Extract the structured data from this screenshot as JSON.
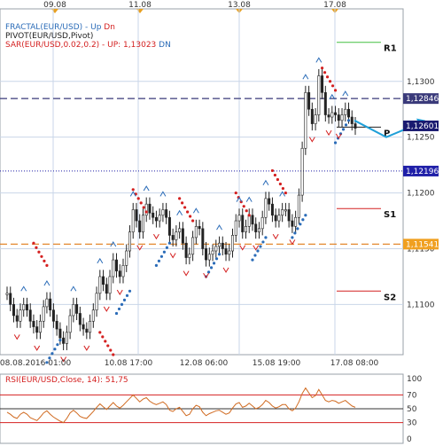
{
  "chart_data": {
    "type": "candlestick",
    "main": {
      "top_dates": [
        "09.08",
        "11.08",
        "13.08",
        "17.08"
      ],
      "bottom_dates": [
        "08.08.2016 01:00",
        "10.08 17:00",
        "12.08 06:00",
        "15.08 19:00",
        "17.08 08:00"
      ],
      "y_ticks": [
        1.11,
        1.115,
        1.12,
        1.125,
        1.13
      ],
      "y_tick_labels": [
        "1,1100",
        "1,1150",
        "1,1200",
        "1,1250",
        "1,1300"
      ],
      "ylim": [
        1.1055,
        1.1365
      ],
      "indicators": [
        {
          "name": "FRACTAL(EUR/USD)",
          "parts": [
            {
              "text": "FRACTAL(EUR/USD)  -  ",
              "color": "#2b6cb8"
            },
            {
              "text": "Up  ",
              "color": "#2b6cb8"
            },
            {
              "text": "Dn",
              "color": "#d42020"
            }
          ]
        },
        {
          "name": "PIVOT(EUR/USD,Pivot)",
          "parts": [
            {
              "text": "PIVOT(EUR/USD,Pivot)",
              "color": "#222222"
            }
          ]
        },
        {
          "name": "SAR(EUR/USD,0.02,0.2)",
          "parts": [
            {
              "text": "SAR(EUR/USD,0.02,0.2)  -  UP: 1,13023  ",
              "color": "#d42020"
            },
            {
              "text": "DN",
              "color": "#2b6cb8"
            }
          ]
        }
      ],
      "levels": [
        {
          "label": "1,12846",
          "value": 1.12846,
          "style": "dashed",
          "color": "#3a3a7a",
          "bg": "#3a3a7a",
          "fg": "#ffffff"
        },
        {
          "label": "1,12601",
          "value": 1.12601,
          "style": "tag",
          "color": "#1a1a70",
          "bg": "#1a1a70",
          "fg": "#ffffff"
        },
        {
          "label": "1,12196",
          "value": 1.12196,
          "style": "dotted",
          "color": "#1f1fa8",
          "bg": "#1f1fa8",
          "fg": "#ffffff"
        },
        {
          "label": "1,11541",
          "value": 1.11541,
          "style": "dashed",
          "color": "#e07b18",
          "bg": "#f0a020",
          "fg": "#ffffff"
        }
      ],
      "pivots": [
        {
          "label": "R1",
          "value": 1.1335,
          "color": "#44c040"
        },
        {
          "label": "P",
          "value": 1.1259,
          "color": "#222222"
        },
        {
          "label": "S1",
          "value": 1.1186,
          "color": "#d42020"
        },
        {
          "label": "S2",
          "value": 1.1112,
          "color": "#d42020"
        }
      ],
      "closes": [
        1.111,
        1.11,
        1.109,
        1.1085,
        1.1095,
        1.11,
        1.1095,
        1.1085,
        1.108,
        1.1075,
        1.1085,
        1.1098,
        1.1105,
        1.1095,
        1.1085,
        1.1078,
        1.107,
        1.1065,
        1.1075,
        1.109,
        1.11,
        1.1092,
        1.1082,
        1.1078,
        1.1075,
        1.1085,
        1.1095,
        1.111,
        1.1125,
        1.1118,
        1.111,
        1.1125,
        1.114,
        1.113,
        1.1125,
        1.1135,
        1.1148,
        1.1165,
        1.1185,
        1.1175,
        1.1165,
        1.118,
        1.119,
        1.1182,
        1.1178,
        1.1175,
        1.118,
        1.1185,
        1.1178,
        1.1162,
        1.1158,
        1.1165,
        1.1168,
        1.1155,
        1.1142,
        1.1145,
        1.116,
        1.117,
        1.1168,
        1.115,
        1.114,
        1.1145,
        1.1148,
        1.1152,
        1.1155,
        1.115,
        1.1145,
        1.1148,
        1.1162,
        1.1175,
        1.118,
        1.1165,
        1.117,
        1.118,
        1.1172,
        1.1165,
        1.1168,
        1.1178,
        1.1195,
        1.119,
        1.118,
        1.1175,
        1.118,
        1.1185,
        1.1185,
        1.1175,
        1.117,
        1.1178,
        1.1198,
        1.124,
        1.129,
        1.1275,
        1.1262,
        1.127,
        1.1305,
        1.129,
        1.127,
        1.1268,
        1.1272,
        1.127,
        1.1265,
        1.127,
        1.1275,
        1.1268,
        1.1262,
        1.1258
      ],
      "sar_up": [
        [
          8,
          1.1155
        ],
        [
          28,
          1.1075
        ],
        [
          38,
          1.1203
        ],
        [
          52,
          1.1195
        ],
        [
          69,
          1.12
        ],
        [
          80,
          1.122
        ],
        [
          95,
          1.1312
        ]
      ],
      "sar_down": [
        [
          12,
          1.1048
        ],
        [
          33,
          1.1092
        ],
        [
          45,
          1.1135
        ],
        [
          60,
          1.1125
        ],
        [
          74,
          1.114
        ],
        [
          86,
          1.116
        ],
        [
          99,
          1.1245
        ]
      ],
      "forecast": [
        [
          100,
          1.1265
        ],
        [
          103,
          1.125
        ],
        [
          106,
          1.1262
        ]
      ]
    },
    "rsi": {
      "label": "RSI(EUR/USD,Close, 14): 51,75",
      "levels": [
        100,
        70,
        50,
        30,
        0
      ],
      "level_labels": [
        "100",
        "70",
        "50",
        "30",
        "0"
      ],
      "values": [
        45,
        42,
        38,
        36,
        42,
        45,
        42,
        37,
        35,
        33,
        38,
        44,
        47,
        42,
        38,
        35,
        32,
        30,
        36,
        44,
        48,
        44,
        39,
        37,
        36,
        41,
        46,
        52,
        57,
        53,
        49,
        54,
        59,
        54,
        51,
        55,
        60,
        65,
        70,
        65,
        60,
        64,
        66,
        61,
        58,
        56,
        58,
        60,
        56,
        48,
        46,
        50,
        52,
        46,
        40,
        42,
        50,
        55,
        53,
        45,
        40,
        43,
        45,
        47,
        48,
        45,
        42,
        44,
        51,
        57,
        59,
        52,
        54,
        58,
        54,
        50,
        52,
        56,
        62,
        59,
        54,
        51,
        53,
        56,
        56,
        50,
        47,
        51,
        60,
        72,
        80,
        73,
        66,
        69,
        78,
        70,
        62,
        60,
        62,
        61,
        58,
        60,
        62,
        58,
        54,
        52
      ]
    }
  }
}
